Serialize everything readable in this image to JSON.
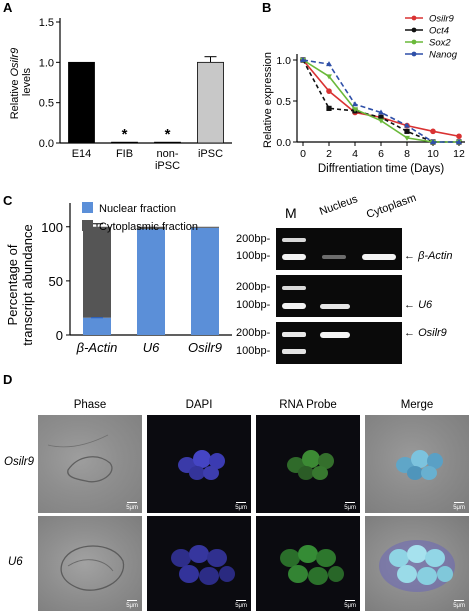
{
  "panels": {
    "a": "A",
    "b": "B",
    "c": "C",
    "d": "D"
  },
  "chart_data": [
    {
      "type": "bar",
      "ylabel": "Relative Osilr9 levels",
      "ylim": [
        0,
        1.5
      ],
      "yticks": [
        "0.0",
        "0.5",
        "1.0",
        "1.5"
      ],
      "categories": [
        "E14",
        "FIB",
        "non-iPSC",
        "iPSC"
      ],
      "values": [
        1.0,
        0.01,
        0.01,
        1.0
      ],
      "errors": [
        0,
        0,
        0,
        0.07
      ],
      "colors": [
        "#000000",
        "#000000",
        "#000000",
        "#c8c8c8"
      ],
      "annotations": [
        {
          "category": "FIB",
          "text": "*"
        },
        {
          "category": "non-iPSC",
          "text": "*"
        }
      ]
    },
    {
      "type": "line",
      "xlabel": "Diffrentiation time (Days)",
      "ylabel": "Relative expression",
      "xlim": [
        0,
        12
      ],
      "ylim": [
        0,
        1.0
      ],
      "x": [
        0,
        2,
        4,
        6,
        8,
        10,
        12
      ],
      "xticks": [
        "0",
        "2",
        "4",
        "6",
        "8",
        "10",
        "12"
      ],
      "yticks": [
        "0.0",
        "0.5",
        "1.0"
      ],
      "legend_position": "top-right",
      "series": [
        {
          "name": "Osilr9",
          "color": "#d93232",
          "values": [
            1.0,
            0.62,
            0.36,
            0.3,
            0.2,
            0.13,
            0.07
          ]
        },
        {
          "name": "Oct4",
          "color": "#111111",
          "values": [
            1.0,
            0.41,
            0.38,
            0.3,
            0.13,
            0.0,
            0.0
          ]
        },
        {
          "name": "Sox2",
          "color": "#6ab93a",
          "values": [
            1.0,
            0.8,
            0.4,
            0.26,
            0.05,
            0.0,
            0.0
          ]
        },
        {
          "name": "Nanog",
          "color": "#2e4fa8",
          "values": [
            1.0,
            0.95,
            0.46,
            0.36,
            0.2,
            0.0,
            0.0
          ]
        }
      ]
    },
    {
      "type": "bar",
      "ylabel": "Percentage of transcript abundance",
      "ylim": [
        0,
        100
      ],
      "yticks": [
        "0",
        "50",
        "100"
      ],
      "categories": [
        "β-Actin",
        "U6",
        "Osilr9"
      ],
      "legend_position": "top-right",
      "series": [
        {
          "name": "Nuclear fraction",
          "color": "#5b8fd8",
          "values": [
            16,
            98,
            99
          ]
        },
        {
          "name": "Cytoplasmic fraction",
          "color": "#555555",
          "values": [
            84,
            2,
            1
          ]
        }
      ]
    }
  ],
  "gel": {
    "header": {
      "marker": "M",
      "nucleus": "Nucleus",
      "cytoplasm": "Cytoplasm"
    },
    "rows": [
      {
        "l1": "200bp-",
        "l2": "100bp-",
        "gene": "β-Actin"
      },
      {
        "l1": "200bp-",
        "l2": "100bp-",
        "gene": "U6"
      },
      {
        "l1": "200bp-",
        "l2": "100bp-",
        "gene": "Osilr9"
      }
    ]
  },
  "micro": {
    "columns": [
      "Phase",
      "DAPI",
      "RNA Probe",
      "Merge"
    ],
    "rows": [
      "Osilr9",
      "U6"
    ],
    "scale": "5μm"
  }
}
